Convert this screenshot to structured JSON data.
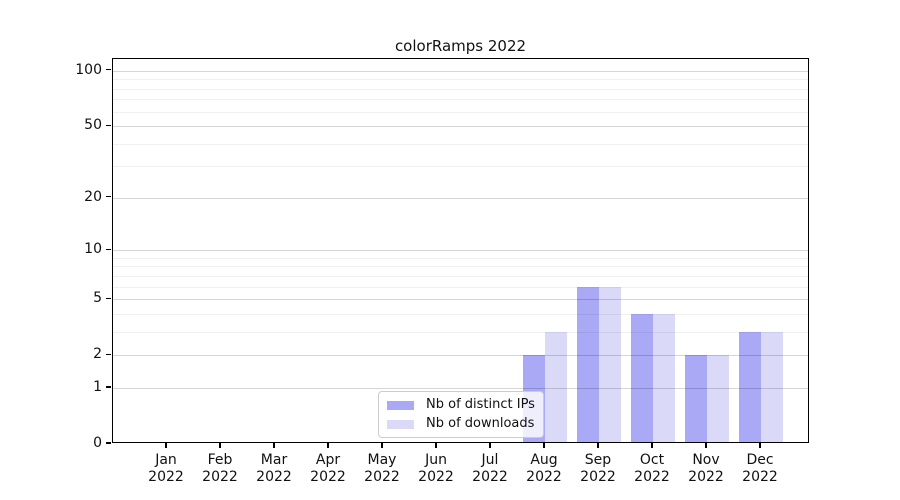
{
  "title": "colorRamps 2022",
  "chart_data": {
    "type": "bar",
    "title": "colorRamps 2022",
    "categories": [
      "Jan",
      "Feb",
      "Mar",
      "Apr",
      "May",
      "Jun",
      "Jul",
      "Aug",
      "Sep",
      "Oct",
      "Nov",
      "Dec"
    ],
    "x_year_label": "2022",
    "series": [
      {
        "name": "Nb of distinct IPs",
        "color": "#a9a9f6",
        "values": [
          0,
          0,
          0,
          0,
          0,
          0,
          0,
          2,
          6,
          4,
          2,
          3
        ]
      },
      {
        "name": "Nb of downloads",
        "color": "#dadaf8",
        "values": [
          0,
          0,
          0,
          0,
          0,
          0,
          0,
          3,
          6,
          4,
          2,
          3
        ]
      }
    ],
    "y_scale": "log10(value+1)",
    "y_ticks": [
      0,
      1,
      2,
      5,
      10,
      20,
      50,
      100
    ],
    "y_minor_gridlines": [
      3,
      4,
      6,
      7,
      8,
      9,
      30,
      40,
      60,
      70,
      80,
      90
    ],
    "ylim": [
      0,
      116
    ],
    "grid": "horizontal",
    "legend_position": "lower-center-inside"
  },
  "colors": {
    "bar_distinct_ips": "#a9a9f6",
    "bar_downloads": "#dadaf8",
    "grid_major": "rgba(0,0,0,0.16)",
    "grid_minor": "rgba(0,0,0,0.06)",
    "spine": "#000000",
    "legend_border": "#cccccc",
    "text": "#111111"
  }
}
